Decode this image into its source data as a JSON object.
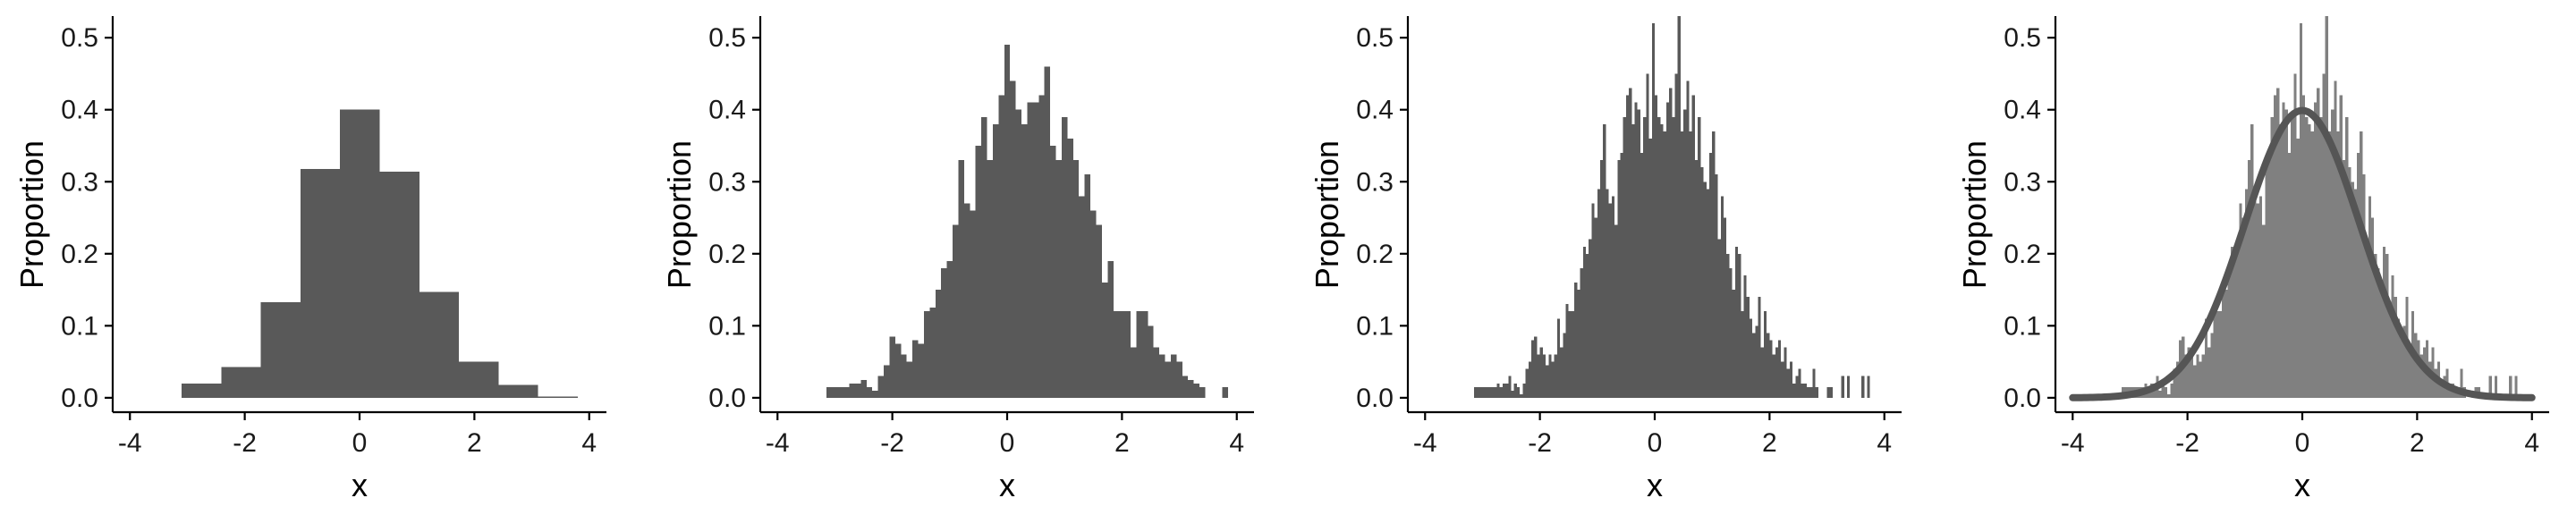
{
  "chart_data": [
    {
      "type": "bar",
      "xlabel": "x",
      "ylabel": "Proportion",
      "xlim": [
        -4.3,
        4.3
      ],
      "ylim": [
        -0.02,
        0.53
      ],
      "x_ticks": [
        -4,
        -2,
        0,
        2,
        4
      ],
      "y_ticks": [
        0.0,
        0.1,
        0.2,
        0.3,
        0.4,
        0.5
      ],
      "bar_color": "#595959",
      "bin_start": -3.1,
      "bin_width": 0.69,
      "values": [
        0.02,
        0.043,
        0.133,
        0.318,
        0.4,
        0.314,
        0.147,
        0.05,
        0.018,
        0.002
      ]
    },
    {
      "type": "bar",
      "xlabel": "x",
      "ylabel": "Proportion",
      "xlim": [
        -4.3,
        4.3
      ],
      "ylim": [
        -0.02,
        0.53
      ],
      "x_ticks": [
        -4,
        -2,
        0,
        2,
        4
      ],
      "y_ticks": [
        0.0,
        0.1,
        0.2,
        0.3,
        0.4,
        0.5
      ],
      "bar_color": "#595959",
      "bin_start": -3.15,
      "bin_width": 0.1,
      "values": [
        0.015,
        0.015,
        0.015,
        0.015,
        0.02,
        0.02,
        0.025,
        0.015,
        0.01,
        0.03,
        0.045,
        0.085,
        0.075,
        0.06,
        0.05,
        0.08,
        0.075,
        0.12,
        0.125,
        0.15,
        0.18,
        0.19,
        0.24,
        0.33,
        0.27,
        0.26,
        0.35,
        0.39,
        0.33,
        0.38,
        0.42,
        0.49,
        0.44,
        0.4,
        0.38,
        0.41,
        0.41,
        0.42,
        0.46,
        0.35,
        0.33,
        0.39,
        0.36,
        0.33,
        0.28,
        0.31,
        0.26,
        0.24,
        0.16,
        0.19,
        0.12,
        0.12,
        0.12,
        0.07,
        0.12,
        0.12,
        0.1,
        0.07,
        0.06,
        0.05,
        0.06,
        0.05,
        0.03,
        0.025,
        0.02,
        0.015,
        0,
        0,
        0,
        0.015
      ]
    },
    {
      "type": "bar",
      "xlabel": "x",
      "ylabel": "Proportion",
      "xlim": [
        -4.3,
        4.3
      ],
      "ylim": [
        -0.02,
        0.53
      ],
      "x_ticks": [
        -4,
        -2,
        0,
        2,
        4
      ],
      "y_ticks": [
        0.0,
        0.1,
        0.2,
        0.3,
        0.4,
        0.5
      ],
      "bar_color": "#595959",
      "bin_start": -3.15,
      "bin_width": 0.05,
      "values": [
        0.015,
        0.015,
        0.015,
        0.015,
        0.015,
        0.015,
        0.015,
        0.015,
        0.02,
        0.015,
        0.02,
        0.02,
        0.03,
        0.01,
        0.02,
        0.015,
        0.005,
        0.02,
        0.04,
        0.05,
        0.08,
        0.085,
        0.06,
        0.07,
        0.06,
        0.045,
        0.06,
        0.05,
        0.06,
        0.11,
        0.07,
        0.09,
        0.13,
        0.12,
        0.12,
        0.16,
        0.15,
        0.18,
        0.21,
        0.2,
        0.22,
        0.27,
        0.25,
        0.29,
        0.33,
        0.38,
        0.29,
        0.27,
        0.28,
        0.24,
        0.33,
        0.34,
        0.39,
        0.42,
        0.43,
        0.38,
        0.41,
        0.4,
        0.34,
        0.39,
        0.45,
        0.36,
        0.52,
        0.42,
        0.39,
        0.38,
        0.37,
        0.41,
        0.43,
        0.39,
        0.45,
        0.53,
        0.37,
        0.4,
        0.44,
        0.37,
        0.42,
        0.33,
        0.39,
        0.32,
        0.3,
        0.29,
        0.34,
        0.37,
        0.31,
        0.22,
        0.28,
        0.25,
        0.2,
        0.18,
        0.15,
        0.21,
        0.2,
        0.12,
        0.17,
        0.14,
        0.11,
        0.09,
        0.1,
        0.14,
        0.07,
        0.12,
        0.09,
        0.08,
        0.06,
        0.07,
        0.08,
        0.05,
        0.07,
        0.04,
        0.05,
        0.02,
        0.03,
        0.04,
        0.02,
        0.02,
        0.015,
        0.015,
        0.04,
        0.015,
        0,
        0,
        0,
        0.015,
        0.015,
        0,
        0,
        0,
        0.03,
        0,
        0.03,
        0,
        0,
        0,
        0,
        0.03,
        0,
        0.03
      ]
    },
    {
      "type": "bar",
      "xlabel": "x",
      "ylabel": "Proportion",
      "xlim": [
        -4.3,
        4.3
      ],
      "ylim": [
        -0.02,
        0.53
      ],
      "x_ticks": [
        -4,
        -2,
        0,
        2,
        4
      ],
      "y_ticks": [
        0.0,
        0.1,
        0.2,
        0.3,
        0.4,
        0.5
      ],
      "bar_color": "#808080",
      "curve_color": "#555555",
      "curve": "normal density, mean 0, sd 1",
      "curve_x_range": [
        -4,
        4
      ],
      "bin_start": -3.15,
      "bin_width": 0.05,
      "values": [
        0.015,
        0.015,
        0.015,
        0.015,
        0.015,
        0.015,
        0.015,
        0.015,
        0.02,
        0.015,
        0.02,
        0.02,
        0.03,
        0.01,
        0.02,
        0.015,
        0.005,
        0.02,
        0.04,
        0.05,
        0.08,
        0.085,
        0.06,
        0.07,
        0.06,
        0.045,
        0.06,
        0.05,
        0.06,
        0.11,
        0.07,
        0.09,
        0.13,
        0.12,
        0.12,
        0.16,
        0.15,
        0.18,
        0.21,
        0.2,
        0.22,
        0.27,
        0.25,
        0.29,
        0.33,
        0.38,
        0.29,
        0.27,
        0.28,
        0.24,
        0.33,
        0.34,
        0.39,
        0.42,
        0.43,
        0.38,
        0.41,
        0.4,
        0.34,
        0.39,
        0.45,
        0.36,
        0.52,
        0.42,
        0.39,
        0.38,
        0.37,
        0.41,
        0.43,
        0.39,
        0.45,
        0.53,
        0.37,
        0.4,
        0.44,
        0.37,
        0.42,
        0.33,
        0.39,
        0.32,
        0.3,
        0.29,
        0.34,
        0.37,
        0.31,
        0.22,
        0.28,
        0.25,
        0.2,
        0.18,
        0.15,
        0.21,
        0.2,
        0.12,
        0.17,
        0.14,
        0.11,
        0.09,
        0.1,
        0.14,
        0.07,
        0.12,
        0.09,
        0.08,
        0.06,
        0.07,
        0.08,
        0.05,
        0.07,
        0.04,
        0.05,
        0.02,
        0.03,
        0.04,
        0.02,
        0.02,
        0.015,
        0.015,
        0.04,
        0.015,
        0,
        0,
        0,
        0.015,
        0.015,
        0,
        0,
        0,
        0.03,
        0,
        0.03,
        0,
        0,
        0,
        0,
        0.03,
        0,
        0.03
      ]
    }
  ]
}
